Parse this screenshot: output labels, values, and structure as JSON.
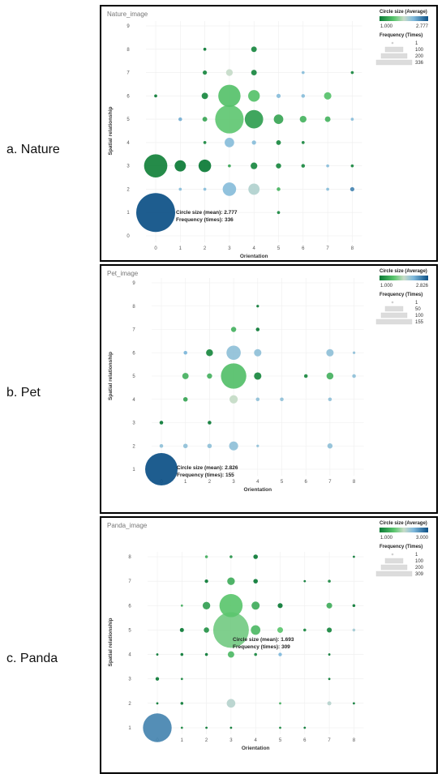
{
  "labels": [
    "a. Nature",
    "b. Pet",
    "c. Panda"
  ],
  "chart_data": [
    {
      "type": "scatter",
      "title": "Nature_image",
      "xlabel": "Orientation",
      "ylabel": "Spatial relationship",
      "x_ticks": [
        "0",
        "1",
        "2",
        "3",
        "4",
        "5",
        "6",
        "7",
        "8"
      ],
      "y_ticks": [
        "0",
        "1",
        "2",
        "3",
        "4",
        "5",
        "6",
        "7",
        "8",
        "9"
      ],
      "xlim": [
        0,
        8
      ],
      "ylim": [
        0,
        9
      ],
      "color_legend": {
        "title": "Circle size (Average)",
        "min": "1.000",
        "max": "2.777"
      },
      "size_legend": {
        "title": "Frequency (Times)",
        "entries": [
          "1",
          "100",
          "200",
          "336"
        ]
      },
      "annotation": [
        "Circle size (mean):  2.777",
        "Frequency (times):  336"
      ],
      "points": [
        {
          "x": 0,
          "y": 1,
          "freq": 336,
          "mean": 2.777
        },
        {
          "x": 0,
          "y": 3,
          "freq": 120,
          "mean": 1.05
        },
        {
          "x": 0,
          "y": 6,
          "freq": 2,
          "mean": 1.0
        },
        {
          "x": 1,
          "y": 3,
          "freq": 28,
          "mean": 1.0
        },
        {
          "x": 1,
          "y": 5,
          "freq": 3,
          "mean": 2.3
        },
        {
          "x": 1,
          "y": 2,
          "freq": 2,
          "mean": 2.2
        },
        {
          "x": 2,
          "y": 3,
          "freq": 35,
          "mean": 1.0
        },
        {
          "x": 2,
          "y": 6,
          "freq": 9,
          "mean": 1.1
        },
        {
          "x": 2,
          "y": 5,
          "freq": 5,
          "mean": 1.3
        },
        {
          "x": 2,
          "y": 7,
          "freq": 4,
          "mean": 1.1
        },
        {
          "x": 2,
          "y": 8,
          "freq": 2,
          "mean": 1.0
        },
        {
          "x": 2,
          "y": 4,
          "freq": 2,
          "mean": 1.1
        },
        {
          "x": 2,
          "y": 2,
          "freq": 2,
          "mean": 2.2
        },
        {
          "x": 3,
          "y": 6,
          "freq": 110,
          "mean": 1.5
        },
        {
          "x": 3,
          "y": 5,
          "freq": 180,
          "mean": 1.55
        },
        {
          "x": 3,
          "y": 2,
          "freq": 40,
          "mean": 2.2
        },
        {
          "x": 3,
          "y": 4,
          "freq": 20,
          "mean": 2.2
        },
        {
          "x": 3,
          "y": 7,
          "freq": 10,
          "mean": 1.9
        },
        {
          "x": 3,
          "y": 3,
          "freq": 2,
          "mean": 1.3
        },
        {
          "x": 4,
          "y": 5,
          "freq": 75,
          "mean": 1.25
        },
        {
          "x": 4,
          "y": 6,
          "freq": 30,
          "mean": 1.5
        },
        {
          "x": 4,
          "y": 2,
          "freq": 28,
          "mean": 2.0
        },
        {
          "x": 4,
          "y": 3,
          "freq": 10,
          "mean": 1.1
        },
        {
          "x": 4,
          "y": 7,
          "freq": 7,
          "mean": 1.1
        },
        {
          "x": 4,
          "y": 8,
          "freq": 7,
          "mean": 1.1
        },
        {
          "x": 4,
          "y": 4,
          "freq": 4,
          "mean": 2.2
        },
        {
          "x": 5,
          "y": 5,
          "freq": 20,
          "mean": 1.3
        },
        {
          "x": 5,
          "y": 3,
          "freq": 6,
          "mean": 1.1
        },
        {
          "x": 5,
          "y": 4,
          "freq": 5,
          "mean": 1.1
        },
        {
          "x": 5,
          "y": 6,
          "freq": 4,
          "mean": 2.2
        },
        {
          "x": 5,
          "y": 2,
          "freq": 3,
          "mean": 1.4
        },
        {
          "x": 5,
          "y": 1,
          "freq": 2,
          "mean": 1.1
        },
        {
          "x": 6,
          "y": 5,
          "freq": 10,
          "mean": 1.4
        },
        {
          "x": 6,
          "y": 3,
          "freq": 3,
          "mean": 1.1
        },
        {
          "x": 6,
          "y": 6,
          "freq": 3,
          "mean": 2.2
        },
        {
          "x": 6,
          "y": 4,
          "freq": 2,
          "mean": 1.1
        },
        {
          "x": 6,
          "y": 7,
          "freq": 2,
          "mean": 2.2
        },
        {
          "x": 7,
          "y": 6,
          "freq": 12,
          "mean": 1.5
        },
        {
          "x": 7,
          "y": 5,
          "freq": 7,
          "mean": 1.4
        },
        {
          "x": 7,
          "y": 3,
          "freq": 2,
          "mean": 2.2
        },
        {
          "x": 7,
          "y": 2,
          "freq": 2,
          "mean": 2.2
        },
        {
          "x": 8,
          "y": 2,
          "freq": 4,
          "mean": 2.5
        },
        {
          "x": 8,
          "y": 3,
          "freq": 2,
          "mean": 1.1
        },
        {
          "x": 8,
          "y": 5,
          "freq": 2,
          "mean": 2.2
        },
        {
          "x": 8,
          "y": 7,
          "freq": 2,
          "mean": 1.1
        }
      ]
    },
    {
      "type": "scatter",
      "title": "Pet_image",
      "xlabel": "Orientation",
      "ylabel": "Spatial relationship",
      "x_ticks": [
        "0",
        "1",
        "2",
        "3",
        "4",
        "5",
        "6",
        "7",
        "8"
      ],
      "y_ticks": [
        "1",
        "2",
        "3",
        "4",
        "5",
        "6",
        "7",
        "8",
        "9"
      ],
      "xlim": [
        0,
        8
      ],
      "ylim": [
        1,
        9
      ],
      "color_legend": {
        "title": "Circle size (Average)",
        "min": "1.000",
        "max": "2.826"
      },
      "size_legend": {
        "title": "Frequency (Times)",
        "entries": [
          "1",
          "50",
          "100",
          "155"
        ]
      },
      "annotation": [
        "Circle size (mean): 2.826",
        "Frequency (times): 155"
      ],
      "points": [
        {
          "x": 0,
          "y": 1,
          "freq": 155,
          "mean": 2.826
        },
        {
          "x": 0,
          "y": 2,
          "freq": 2,
          "mean": 2.2
        },
        {
          "x": 0,
          "y": 3,
          "freq": 2,
          "mean": 1.0
        },
        {
          "x": 1,
          "y": 2,
          "freq": 3,
          "mean": 2.2
        },
        {
          "x": 1,
          "y": 4,
          "freq": 3,
          "mean": 1.3
        },
        {
          "x": 1,
          "y": 5,
          "freq": 6,
          "mean": 1.4
        },
        {
          "x": 1,
          "y": 6,
          "freq": 2,
          "mean": 2.3
        },
        {
          "x": 2,
          "y": 2,
          "freq": 3,
          "mean": 2.2
        },
        {
          "x": 2,
          "y": 3,
          "freq": 2,
          "mean": 1.0
        },
        {
          "x": 2,
          "y": 5,
          "freq": 4,
          "mean": 1.4
        },
        {
          "x": 2,
          "y": 6,
          "freq": 7,
          "mean": 1.1
        },
        {
          "x": 3,
          "y": 2,
          "freq": 12,
          "mean": 2.2
        },
        {
          "x": 3,
          "y": 4,
          "freq": 10,
          "mean": 1.9
        },
        {
          "x": 3,
          "y": 5,
          "freq": 95,
          "mean": 1.5
        },
        {
          "x": 3,
          "y": 6,
          "freq": 30,
          "mean": 2.2
        },
        {
          "x": 3,
          "y": 7,
          "freq": 4,
          "mean": 1.4
        },
        {
          "x": 4,
          "y": 2,
          "freq": 1,
          "mean": 2.2
        },
        {
          "x": 4,
          "y": 4,
          "freq": 2,
          "mean": 2.2
        },
        {
          "x": 4,
          "y": 5,
          "freq": 8,
          "mean": 1.1
        },
        {
          "x": 4,
          "y": 6,
          "freq": 8,
          "mean": 2.2
        },
        {
          "x": 4,
          "y": 7,
          "freq": 2,
          "mean": 1.0
        },
        {
          "x": 4,
          "y": 8,
          "freq": 1,
          "mean": 1.0
        },
        {
          "x": 5,
          "y": 4,
          "freq": 2,
          "mean": 2.2
        },
        {
          "x": 6,
          "y": 5,
          "freq": 2,
          "mean": 1.1
        },
        {
          "x": 7,
          "y": 2,
          "freq": 4,
          "mean": 2.2
        },
        {
          "x": 7,
          "y": 4,
          "freq": 2,
          "mean": 2.2
        },
        {
          "x": 7,
          "y": 5,
          "freq": 7,
          "mean": 1.4
        },
        {
          "x": 7,
          "y": 6,
          "freq": 8,
          "mean": 2.2
        },
        {
          "x": 8,
          "y": 5,
          "freq": 2,
          "mean": 2.2
        },
        {
          "x": 8,
          "y": 6,
          "freq": 1,
          "mean": 2.2
        }
      ]
    },
    {
      "type": "scatter",
      "title": "Panda_image",
      "xlabel": "Orientation",
      "ylabel": "Spatial relationship",
      "x_ticks": [
        "0",
        "1",
        "2",
        "3",
        "4",
        "5",
        "6",
        "7",
        "8"
      ],
      "y_ticks": [
        "1",
        "2",
        "3",
        "4",
        "5",
        "6",
        "7",
        "8"
      ],
      "xlim": [
        0,
        8
      ],
      "ylim": [
        1,
        8
      ],
      "color_legend": {
        "title": "Circle size (Average)",
        "min": "1.000",
        "max": "3.000"
      },
      "size_legend": {
        "title": "Frequency (Times)",
        "entries": [
          "1",
          "100",
          "200",
          "309"
        ]
      },
      "annotation": [
        "Circle size (mean): 1.693",
        "Frequency (times): 309"
      ],
      "points": [
        {
          "x": 0,
          "y": 1,
          "freq": 200,
          "mean": 2.7
        },
        {
          "x": 0,
          "y": 2,
          "freq": 1,
          "mean": 1.0
        },
        {
          "x": 0,
          "y": 3,
          "freq": 3,
          "mean": 1.0
        },
        {
          "x": 0,
          "y": 4,
          "freq": 1,
          "mean": 1.0
        },
        {
          "x": 1,
          "y": 1,
          "freq": 1,
          "mean": 1.1
        },
        {
          "x": 1,
          "y": 2,
          "freq": 2,
          "mean": 1.0
        },
        {
          "x": 1,
          "y": 3,
          "freq": 1,
          "mean": 1.1
        },
        {
          "x": 1,
          "y": 4,
          "freq": 2,
          "mean": 1.0
        },
        {
          "x": 1,
          "y": 5,
          "freq": 4,
          "mean": 1.0
        },
        {
          "x": 1,
          "y": 6,
          "freq": 1,
          "mean": 1.4
        },
        {
          "x": 2,
          "y": 1,
          "freq": 1,
          "mean": 1.0
        },
        {
          "x": 2,
          "y": 4,
          "freq": 2,
          "mean": 1.0
        },
        {
          "x": 2,
          "y": 5,
          "freq": 7,
          "mean": 1.2
        },
        {
          "x": 2,
          "y": 6,
          "freq": 14,
          "mean": 1.3
        },
        {
          "x": 2,
          "y": 7,
          "freq": 3,
          "mean": 1.0
        },
        {
          "x": 2,
          "y": 8,
          "freq": 2,
          "mean": 1.4
        },
        {
          "x": 3,
          "y": 1,
          "freq": 1,
          "mean": 1.0
        },
        {
          "x": 3,
          "y": 2,
          "freq": 18,
          "mean": 2.1
        },
        {
          "x": 3,
          "y": 4,
          "freq": 10,
          "mean": 1.5
        },
        {
          "x": 3,
          "y": 5,
          "freq": 309,
          "mean": 1.693
        },
        {
          "x": 3,
          "y": 6,
          "freq": 130,
          "mean": 1.6
        },
        {
          "x": 3,
          "y": 7,
          "freq": 14,
          "mean": 1.4
        },
        {
          "x": 3,
          "y": 8,
          "freq": 2,
          "mean": 1.2
        },
        {
          "x": 4,
          "y": 4,
          "freq": 2,
          "mean": 1.1
        },
        {
          "x": 4,
          "y": 5,
          "freq": 22,
          "mean": 1.5
        },
        {
          "x": 4,
          "y": 6,
          "freq": 16,
          "mean": 1.4
        },
        {
          "x": 4,
          "y": 7,
          "freq": 5,
          "mean": 1.0
        },
        {
          "x": 4,
          "y": 8,
          "freq": 5,
          "mean": 1.0
        },
        {
          "x": 5,
          "y": 1,
          "freq": 1,
          "mean": 1.1
        },
        {
          "x": 5,
          "y": 2,
          "freq": 1,
          "mean": 1.4
        },
        {
          "x": 5,
          "y": 4,
          "freq": 3,
          "mean": 2.4
        },
        {
          "x": 5,
          "y": 5,
          "freq": 8,
          "mean": 1.6
        },
        {
          "x": 5,
          "y": 6,
          "freq": 6,
          "mean": 1.0
        },
        {
          "x": 6,
          "y": 1,
          "freq": 1,
          "mean": 1.0
        },
        {
          "x": 6,
          "y": 5,
          "freq": 2,
          "mean": 1.1
        },
        {
          "x": 6,
          "y": 7,
          "freq": 1,
          "mean": 1.0
        },
        {
          "x": 7,
          "y": 2,
          "freq": 4,
          "mean": 2.1
        },
        {
          "x": 7,
          "y": 3,
          "freq": 1,
          "mean": 1.0
        },
        {
          "x": 7,
          "y": 4,
          "freq": 1,
          "mean": 1.0
        },
        {
          "x": 7,
          "y": 5,
          "freq": 6,
          "mean": 1.1
        },
        {
          "x": 7,
          "y": 6,
          "freq": 8,
          "mean": 1.4
        },
        {
          "x": 7,
          "y": 7,
          "freq": 2,
          "mean": 1.1
        },
        {
          "x": 8,
          "y": 2,
          "freq": 1,
          "mean": 1.0
        },
        {
          "x": 8,
          "y": 5,
          "freq": 2,
          "mean": 2.2
        },
        {
          "x": 8,
          "y": 6,
          "freq": 2,
          "mean": 1.0
        },
        {
          "x": 8,
          "y": 8,
          "freq": 1,
          "mean": 1.0
        }
      ]
    }
  ]
}
